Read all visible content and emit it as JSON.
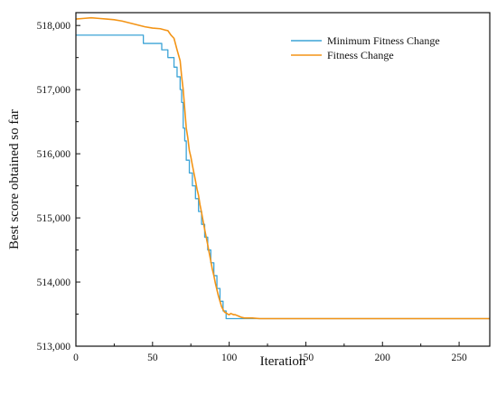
{
  "chart_data": {
    "type": "line",
    "title": "",
    "xlabel": "Iteration",
    "ylabel": "Best score obtained so far",
    "xlim": [
      0,
      270
    ],
    "ylim": [
      513000,
      518200
    ],
    "x_ticks": [
      0,
      50,
      100,
      150,
      200,
      250
    ],
    "y_ticks": [
      513000,
      514000,
      515000,
      516000,
      517000,
      518000
    ],
    "y_tick_labels": [
      "513,000",
      "514,000",
      "515,000",
      "516,000",
      "517,000",
      "518,000"
    ],
    "legend_position": "top-right",
    "grid": false,
    "series": [
      {
        "name": "Minimum Fitness Change",
        "color": "#3ba3d6",
        "step": true,
        "x": [
          0,
          38,
          44,
          56,
          60,
          64,
          66,
          68,
          69,
          70,
          71,
          72,
          74,
          76,
          78,
          80,
          82,
          84,
          86,
          88,
          90,
          92,
          94,
          96,
          98,
          100,
          110,
          120,
          270
        ],
        "y": [
          517850,
          517850,
          517720,
          517620,
          517500,
          517350,
          517200,
          517000,
          516800,
          516400,
          516200,
          515900,
          515700,
          515500,
          515300,
          515100,
          514900,
          514700,
          514500,
          514300,
          514100,
          513900,
          513700,
          513550,
          513430,
          513430,
          513430,
          513430,
          513430
        ]
      },
      {
        "name": "Fitness Change",
        "color": "#f39416",
        "step": false,
        "x": [
          0,
          5,
          10,
          15,
          20,
          25,
          30,
          35,
          40,
          45,
          50,
          55,
          58,
          60,
          62,
          64,
          66,
          68,
          69,
          70,
          71,
          72,
          73,
          74,
          75,
          76,
          77,
          78,
          79,
          80,
          81,
          82,
          83,
          84,
          85,
          86,
          87,
          88,
          89,
          90,
          91,
          92,
          93,
          94,
          95,
          96,
          97,
          98,
          99,
          100,
          101,
          102,
          103,
          104,
          105,
          106,
          107,
          108,
          110,
          115,
          120,
          130,
          270
        ],
        "y": [
          518100,
          518110,
          518120,
          518110,
          518100,
          518090,
          518070,
          518040,
          518010,
          517980,
          517960,
          517950,
          517930,
          517920,
          517850,
          517800,
          517620,
          517450,
          517200,
          517000,
          516700,
          516400,
          516250,
          516050,
          515950,
          515820,
          515700,
          515580,
          515450,
          515350,
          515200,
          515080,
          514950,
          514820,
          514700,
          514580,
          514450,
          514330,
          514200,
          514100,
          513980,
          513880,
          513780,
          513700,
          513620,
          513570,
          513530,
          513520,
          513500,
          513490,
          513510,
          513500,
          513490,
          513490,
          513480,
          513470,
          513460,
          513450,
          513440,
          513440,
          513430,
          513430,
          513430
        ]
      }
    ]
  }
}
